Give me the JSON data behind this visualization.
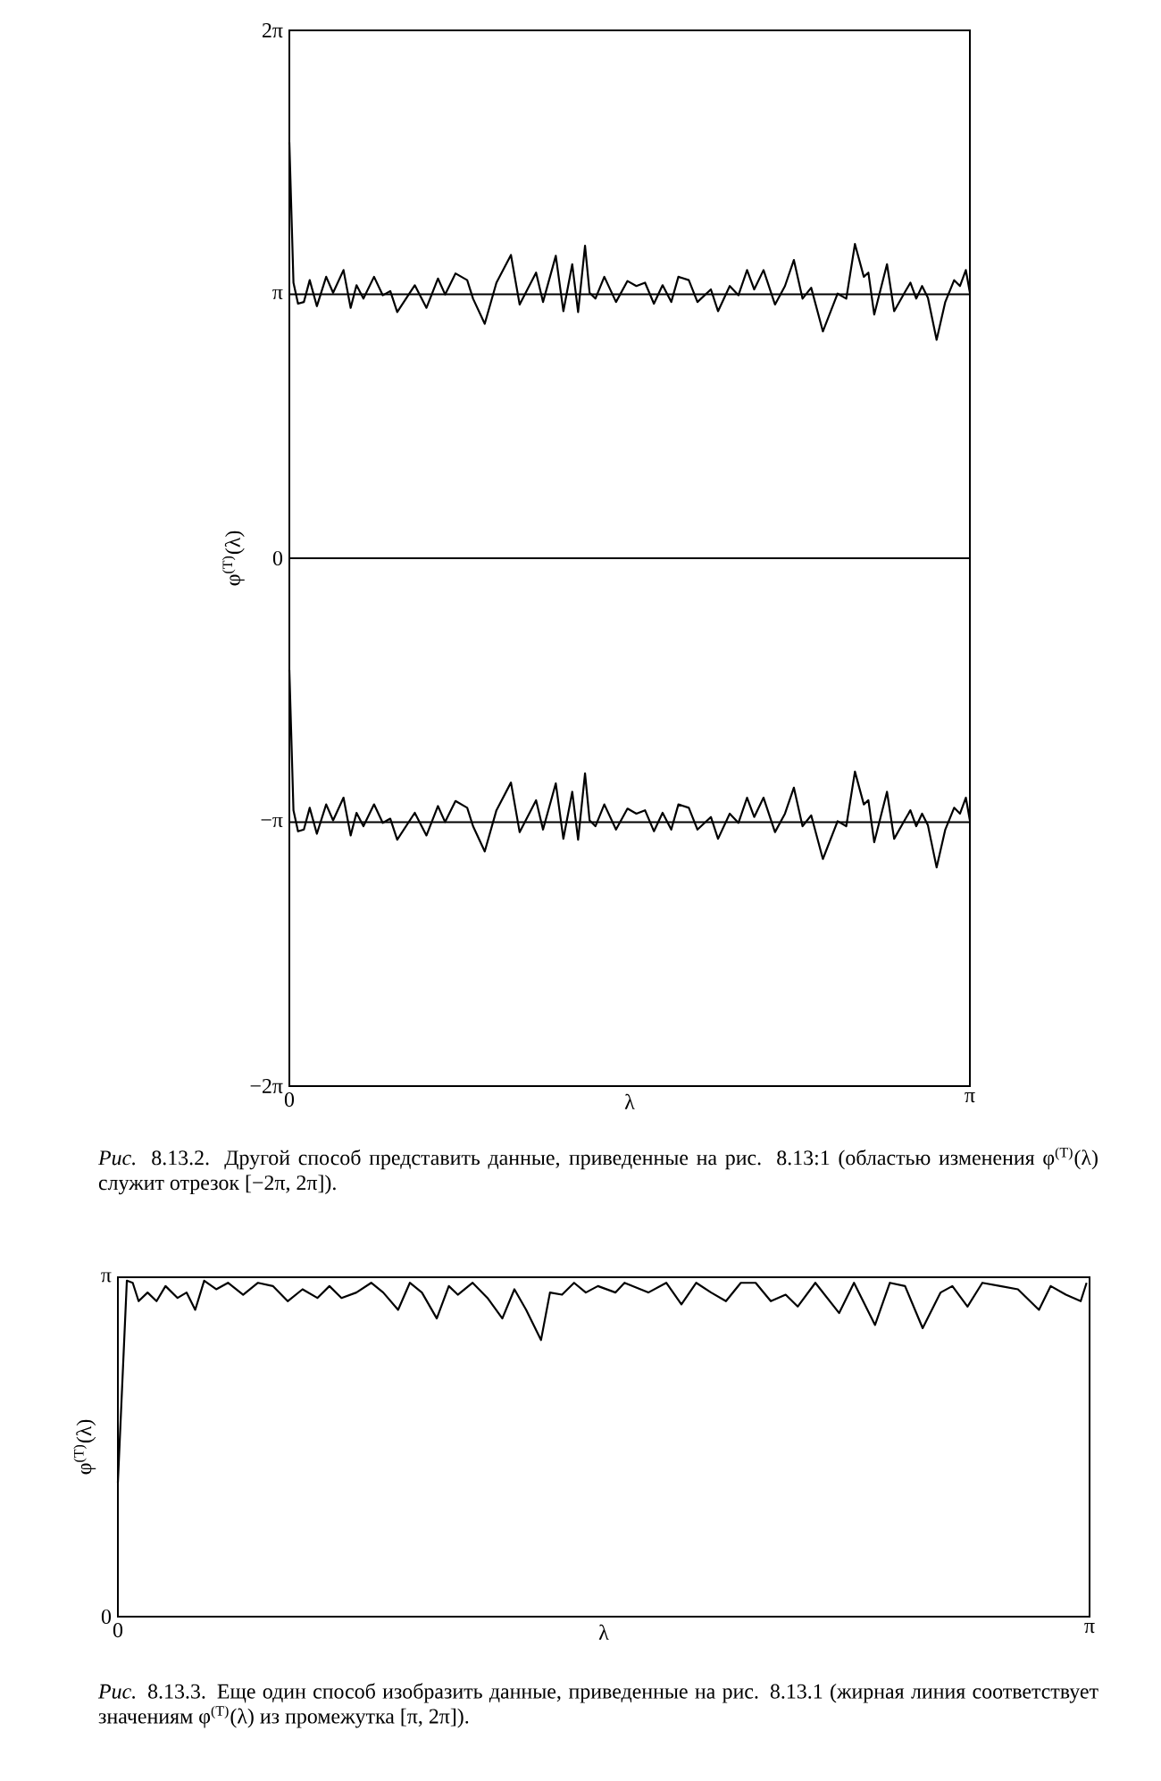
{
  "chart_data": [
    {
      "type": "line",
      "xlabel": "λ",
      "ylabel": "φ$^{(T)}$(λ)",
      "xlim": [
        0,
        3.1416
      ],
      "ylim": [
        -6.2832,
        6.2832
      ],
      "xticks": [
        0,
        {
          "value": 3.1416,
          "label": "π"
        }
      ],
      "yticks": [
        {
          "value": -6.2832,
          "label": "−2π"
        },
        {
          "value": -3.1416,
          "label": "−π"
        },
        0,
        {
          "value": 3.1416,
          "label": "π"
        },
        {
          "value": 6.2832,
          "label": "2π"
        }
      ],
      "x": [
        0,
        0.019,
        0.04,
        0.067,
        0.094,
        0.127,
        0.17,
        0.202,
        0.25,
        0.283,
        0.31,
        0.342,
        0.391,
        0.431,
        0.466,
        0.498,
        0.579,
        0.633,
        0.686,
        0.719,
        0.767,
        0.821,
        0.848,
        0.902,
        0.956,
        1.023,
        1.063,
        1.139,
        1.171,
        1.23,
        1.265,
        1.306,
        1.333,
        1.365,
        1.386,
        1.413,
        1.454,
        1.508,
        1.561,
        1.602,
        1.642,
        1.683,
        1.723,
        1.763,
        1.796,
        1.844,
        1.884,
        1.946,
        1.979,
        2.033,
        2.073,
        2.113,
        2.146,
        2.189,
        2.242,
        2.288,
        2.329,
        2.369,
        2.409,
        2.463,
        2.531,
        2.571,
        2.611,
        2.652,
        2.673,
        2.7,
        2.759,
        2.792,
        2.84,
        2.867,
        2.894,
        2.921,
        2.948,
        2.988,
        3.028,
        3.069,
        3.096,
        3.123,
        3.1416
      ],
      "series": [
        {
          "color": "#000000",
          "values": [
            4.95,
            3.28,
            3.03,
            3.05,
            3.31,
            3.0,
            3.35,
            3.16,
            3.43,
            2.98,
            3.25,
            3.09,
            3.35,
            3.13,
            3.18,
            2.93,
            3.25,
            2.98,
            3.33,
            3.14,
            3.39,
            3.31,
            3.09,
            2.79,
            3.28,
            3.61,
            3.02,
            3.4,
            3.05,
            3.6,
            2.94,
            3.5,
            2.93,
            3.72,
            3.16,
            3.09,
            3.35,
            3.05,
            3.3,
            3.24,
            3.28,
            3.03,
            3.25,
            3.05,
            3.35,
            3.31,
            3.05,
            3.2,
            2.94,
            3.24,
            3.13,
            3.43,
            3.2,
            3.43,
            3.02,
            3.24,
            3.55,
            3.09,
            3.22,
            2.7,
            3.15,
            3.09,
            3.74,
            3.35,
            3.4,
            2.9,
            3.5,
            2.94,
            3.16,
            3.28,
            3.09,
            3.24,
            3.1,
            2.6,
            3.05,
            3.31,
            3.24,
            3.43,
            3.16
          ]
        },
        {
          "color": "#000000",
          "values": [
            -1.33,
            -3.0,
            -3.25,
            -3.23,
            -2.97,
            -3.28,
            -2.93,
            -3.12,
            -2.85,
            -3.3,
            -3.03,
            -3.19,
            -2.93,
            -3.15,
            -3.1,
            -3.35,
            -3.03,
            -3.3,
            -2.95,
            -3.14,
            -2.89,
            -2.97,
            -3.19,
            -3.49,
            -3.0,
            -2.67,
            -3.26,
            -2.88,
            -3.23,
            -2.68,
            -3.34,
            -2.78,
            -3.35,
            -2.56,
            -3.12,
            -3.19,
            -2.93,
            -3.23,
            -2.98,
            -3.04,
            -3.0,
            -3.25,
            -3.03,
            -3.23,
            -2.93,
            -2.97,
            -3.23,
            -3.08,
            -3.34,
            -3.04,
            -3.15,
            -2.85,
            -3.08,
            -2.85,
            -3.26,
            -3.04,
            -2.73,
            -3.19,
            -3.06,
            -3.58,
            -3.13,
            -3.19,
            -2.54,
            -2.93,
            -2.88,
            -3.38,
            -2.78,
            -3.34,
            -3.12,
            -3.0,
            -3.19,
            -3.04,
            -3.18,
            -3.68,
            -3.23,
            -2.97,
            -3.04,
            -2.85,
            -3.12
          ]
        }
      ],
      "ref_lines": [
        {
          "axis": "y",
          "value": 3.1416
        },
        {
          "axis": "y",
          "value": 0
        },
        {
          "axis": "y",
          "value": -3.1416
        }
      ],
      "annotations": [
        "*Рис.* 8.13.2. Другой способ представить данные, приведенные на рис. 8.13:1 (областью изменения φ$^{(T)}$(λ) служит отрезок [−2π, 2π])."
      ]
    },
    {
      "type": "line",
      "xlabel": "λ",
      "ylabel": "φ$^{(T)}$(λ)",
      "xlim": [
        0,
        3.1416
      ],
      "ylim": [
        0,
        3.1416
      ],
      "xticks": [
        0,
        {
          "value": 3.1416,
          "label": "π"
        }
      ],
      "yticks": [
        0,
        {
          "value": 3.1416,
          "label": "π"
        }
      ],
      "x": [
        0,
        0.029,
        0.048,
        0.067,
        0.096,
        0.125,
        0.154,
        0.193,
        0.222,
        0.25,
        0.279,
        0.318,
        0.356,
        0.405,
        0.453,
        0.501,
        0.549,
        0.597,
        0.645,
        0.684,
        0.723,
        0.771,
        0.819,
        0.858,
        0.906,
        0.944,
        0.983,
        1.031,
        1.07,
        1.099,
        1.147,
        1.195,
        1.243,
        1.282,
        1.32,
        1.368,
        1.397,
        1.436,
        1.475,
        1.513,
        1.552,
        1.609,
        1.638,
        1.715,
        1.773,
        1.822,
        1.87,
        1.918,
        1.966,
        2.014,
        2.062,
        2.111,
        2.159,
        2.198,
        2.255,
        2.332,
        2.38,
        2.448,
        2.496,
        2.545,
        2.602,
        2.66,
        2.698,
        2.747,
        2.795,
        2.853,
        2.91,
        2.978,
        3.016,
        3.065,
        3.113,
        3.132
      ],
      "series": [
        {
          "color": "#000000",
          "values": [
            1.24,
            3.11,
            3.09,
            2.92,
            3.0,
            2.92,
            3.06,
            2.95,
            3.0,
            2.84,
            3.11,
            3.03,
            3.09,
            2.98,
            3.09,
            3.06,
            2.92,
            3.03,
            2.95,
            3.06,
            2.95,
            3.0,
            3.09,
            3.0,
            2.84,
            3.09,
            3.0,
            2.76,
            3.06,
            2.98,
            3.09,
            2.95,
            2.76,
            3.03,
            2.84,
            2.56,
            3.0,
            2.98,
            3.09,
            3.0,
            3.06,
            3.0,
            3.09,
            3.0,
            3.09,
            2.89,
            3.09,
            3.0,
            2.92,
            3.09,
            3.09,
            2.92,
            2.98,
            2.87,
            3.09,
            2.81,
            3.09,
            2.7,
            3.09,
            3.06,
            2.67,
            3.0,
            3.06,
            2.87,
            3.09,
            3.06,
            3.03,
            2.84,
            3.06,
            2.98,
            2.92,
            3.09
          ]
        }
      ],
      "annotations": [
        "*Рис.* 8.13.3. Еще один способ изобразить данные, приведенные на рис. 8.13.1 (жирная линия соответствует значениям φ$^{(T)}$(λ) из промежутка [π, 2π])."
      ]
    }
  ]
}
